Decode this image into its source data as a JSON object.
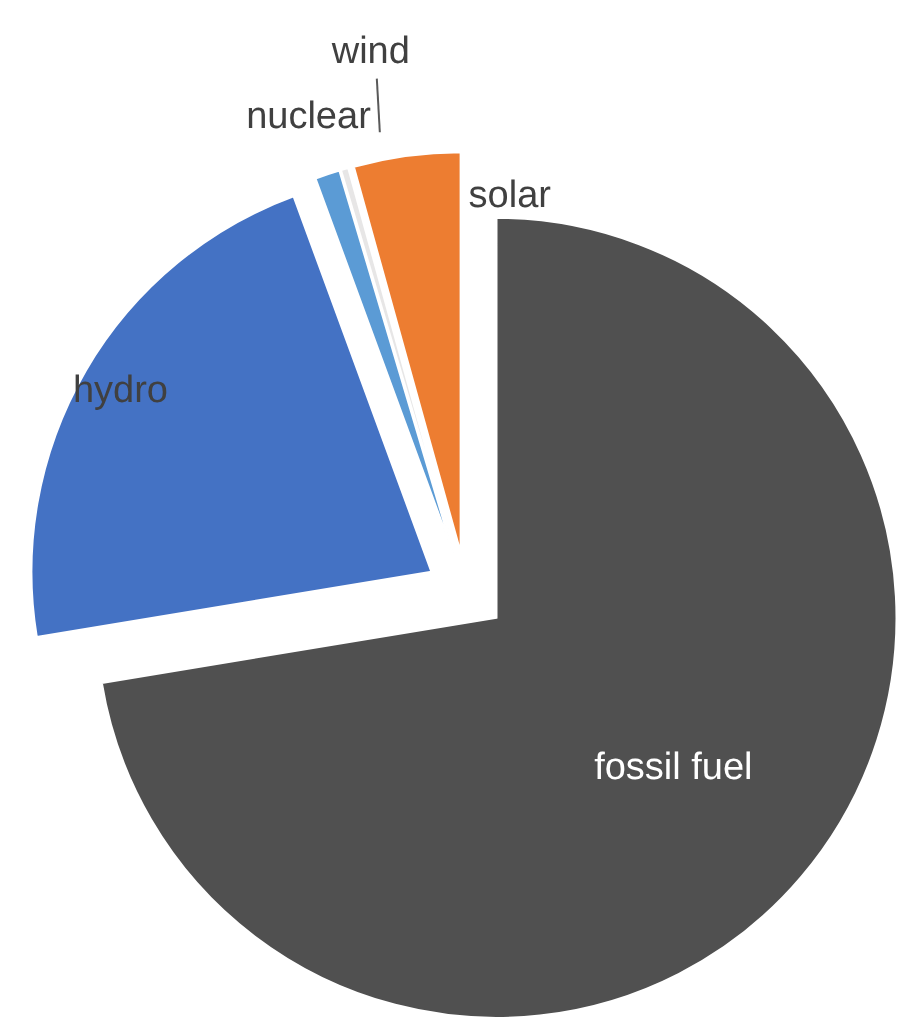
{
  "chart_data": {
    "type": "pie",
    "categories": [
      "fossil fuel",
      "hydro",
      "nuclear",
      "wind",
      "solar"
    ],
    "values": [
      72.4,
      22.0,
      1.0,
      0.3,
      4.3
    ],
    "colors": [
      "#505050",
      "#4472c4",
      "#5b9bd5",
      "#e7e6e6",
      "#ed7d31"
    ]
  }
}
